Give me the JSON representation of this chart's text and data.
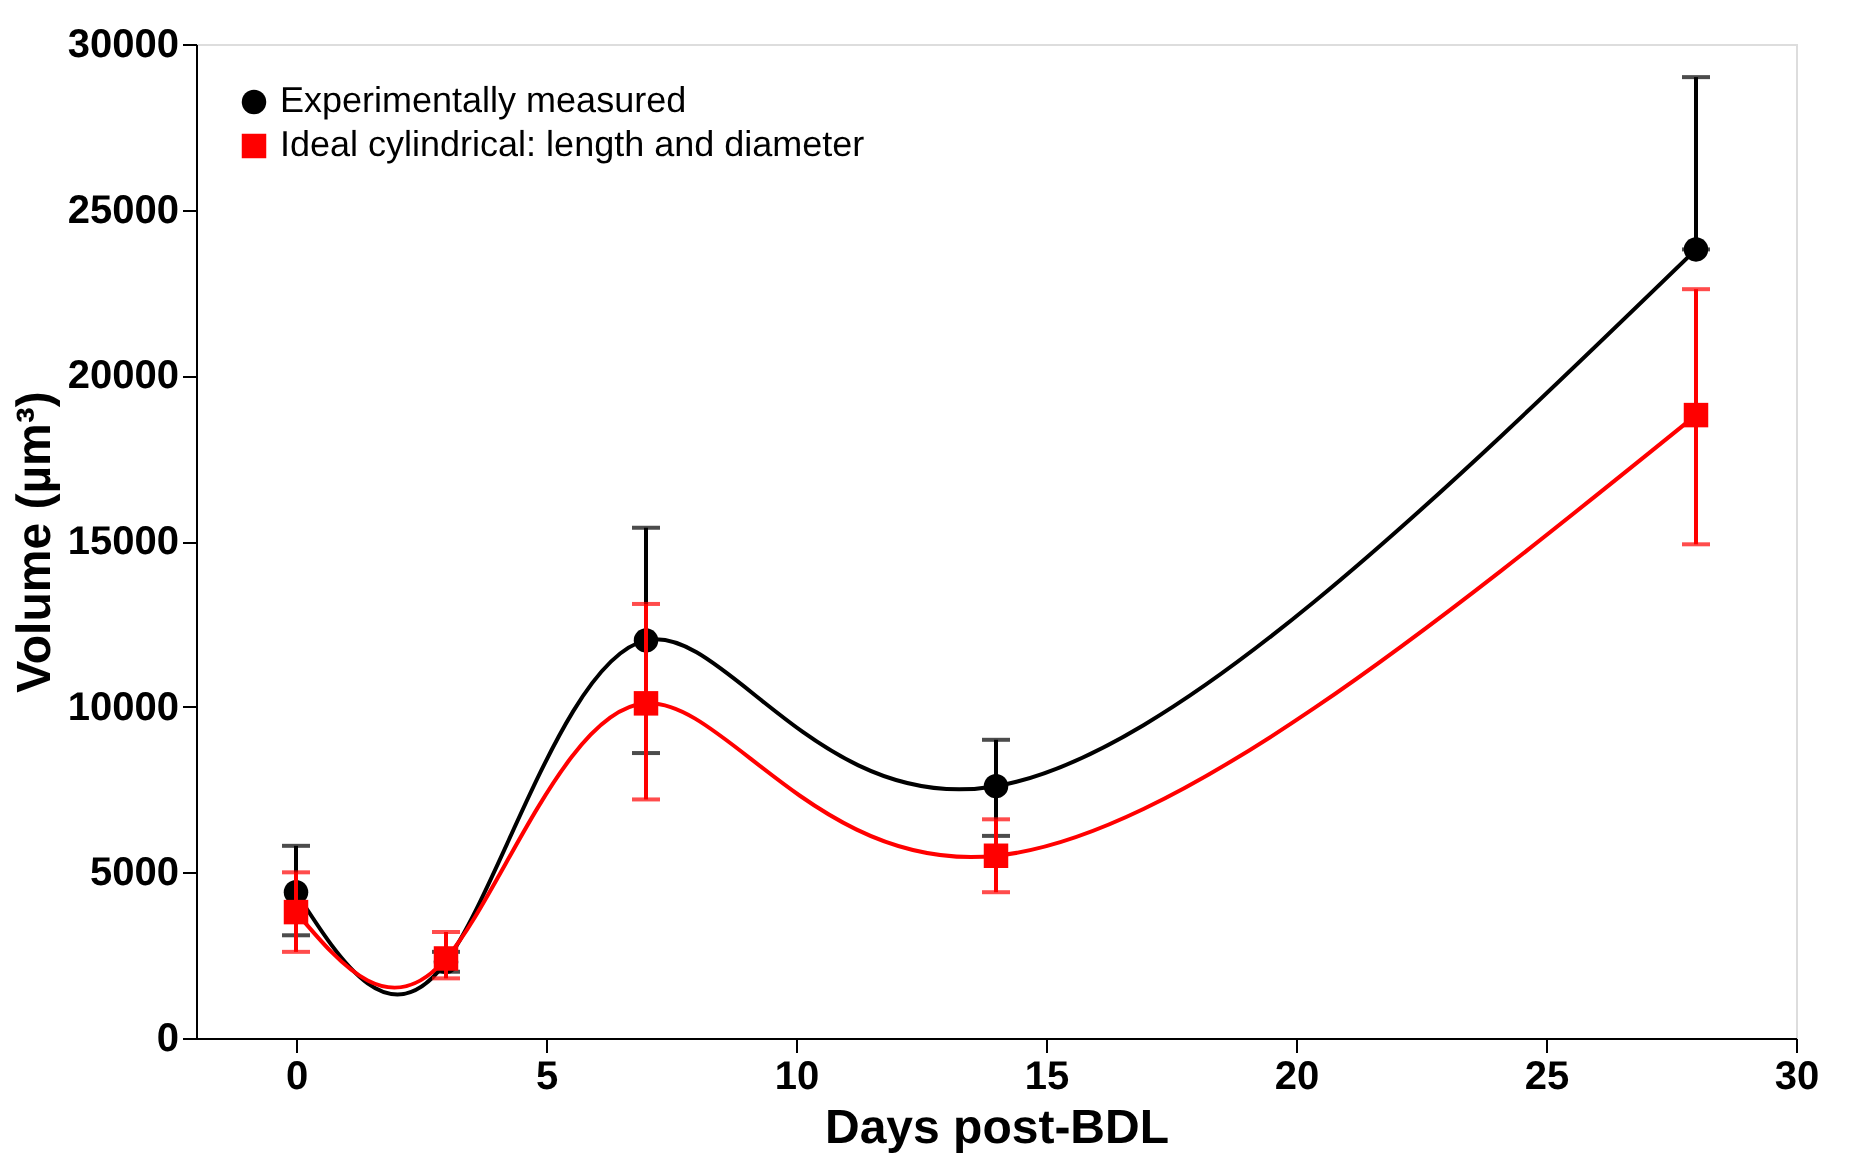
{
  "chart_data": {
    "type": "line",
    "xlabel": "Days post-BDL",
    "ylabel": "Volume (µm³)",
    "x": [
      0,
      3,
      7,
      14,
      28
    ],
    "xlim": [
      -2,
      30
    ],
    "xticks": [
      0,
      5,
      10,
      15,
      20,
      25,
      30
    ],
    "ylim": [
      0,
      30000
    ],
    "yticks": [
      0,
      5000,
      10000,
      15000,
      20000,
      25000,
      30000
    ],
    "grid": false,
    "legend": "top left",
    "series": [
      {
        "name": "Experimentally measured",
        "color": "#000000",
        "marker": "circle",
        "values": [
          4400,
          2300,
          12000,
          7600,
          23800
        ],
        "errors": [
          [
            3100,
            5800
          ],
          [
            2000,
            2600
          ],
          [
            8600,
            15400
          ],
          [
            6100,
            9000
          ],
          [
            23800,
            29000
          ]
        ]
      },
      {
        "name": "Ideal cylindrical: length and diameter",
        "color": "#ff0000",
        "marker": "square",
        "values": [
          3800,
          2400,
          10100,
          5500,
          18800
        ],
        "errors": [
          [
            2600,
            5000
          ],
          [
            1800,
            3200
          ],
          [
            7200,
            13100
          ],
          [
            4400,
            6600
          ],
          [
            14900,
            22600
          ]
        ]
      }
    ]
  }
}
